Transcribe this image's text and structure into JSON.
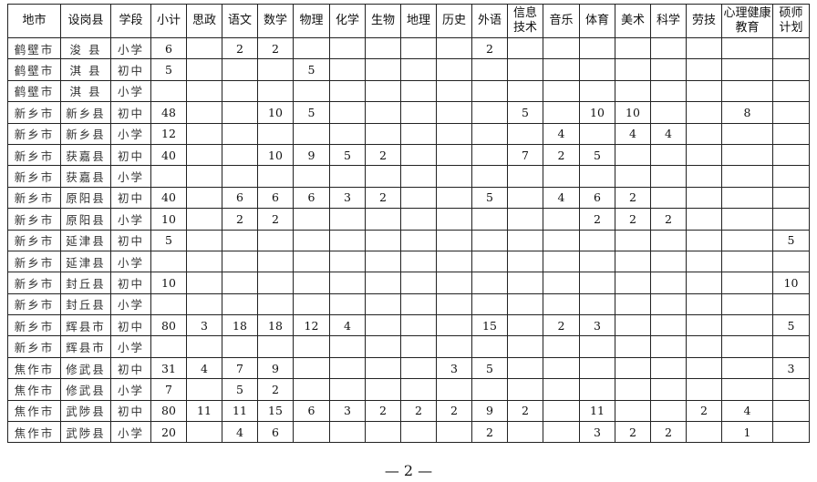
{
  "table": {
    "headers": [
      "地市",
      "设岗县",
      "学段",
      "小计",
      "思政",
      "语文",
      "数学",
      "物理",
      "化学",
      "生物",
      "地理",
      "历史",
      "外语",
      "信息技术",
      "音乐",
      "体育",
      "美术",
      "科学",
      "劳技",
      "心理健康教育",
      "硕师计划"
    ],
    "rows": [
      [
        "鹤壁市",
        "浚 县",
        "小学",
        "6",
        "",
        "2",
        "2",
        "",
        "",
        "",
        "",
        "",
        "2",
        "",
        "",
        "",
        "",
        "",
        "",
        "",
        ""
      ],
      [
        "鹤壁市",
        "淇 县",
        "初中",
        "5",
        "",
        "",
        "",
        "5",
        "",
        "",
        "",
        "",
        "",
        "",
        "",
        "",
        "",
        "",
        "",
        "",
        ""
      ],
      [
        "鹤壁市",
        "淇 县",
        "小学",
        "",
        "",
        "",
        "",
        "",
        "",
        "",
        "",
        "",
        "",
        "",
        "",
        "",
        "",
        "",
        "",
        "",
        ""
      ],
      [
        "新乡市",
        "新乡县",
        "初中",
        "48",
        "",
        "",
        "10",
        "5",
        "",
        "",
        "",
        "",
        "",
        "5",
        "",
        "10",
        "10",
        "",
        "",
        "8",
        ""
      ],
      [
        "新乡市",
        "新乡县",
        "小学",
        "12",
        "",
        "",
        "",
        "",
        "",
        "",
        "",
        "",
        "",
        "",
        "4",
        "",
        "4",
        "4",
        "",
        "",
        ""
      ],
      [
        "新乡市",
        "获嘉县",
        "初中",
        "40",
        "",
        "",
        "10",
        "9",
        "5",
        "2",
        "",
        "",
        "",
        "7",
        "2",
        "5",
        "",
        "",
        "",
        "",
        ""
      ],
      [
        "新乡市",
        "获嘉县",
        "小学",
        "",
        "",
        "",
        "",
        "",
        "",
        "",
        "",
        "",
        "",
        "",
        "",
        "",
        "",
        "",
        "",
        "",
        ""
      ],
      [
        "新乡市",
        "原阳县",
        "初中",
        "40",
        "",
        "6",
        "6",
        "6",
        "3",
        "2",
        "",
        "",
        "5",
        "",
        "4",
        "6",
        "2",
        "",
        "",
        "",
        ""
      ],
      [
        "新乡市",
        "原阳县",
        "小学",
        "10",
        "",
        "2",
        "2",
        "",
        "",
        "",
        "",
        "",
        "",
        "",
        "",
        "2",
        "2",
        "2",
        "",
        "",
        ""
      ],
      [
        "新乡市",
        "延津县",
        "初中",
        "5",
        "",
        "",
        "",
        "",
        "",
        "",
        "",
        "",
        "",
        "",
        "",
        "",
        "",
        "",
        "",
        "",
        "5"
      ],
      [
        "新乡市",
        "延津县",
        "小学",
        "",
        "",
        "",
        "",
        "",
        "",
        "",
        "",
        "",
        "",
        "",
        "",
        "",
        "",
        "",
        "",
        "",
        ""
      ],
      [
        "新乡市",
        "封丘县",
        "初中",
        "10",
        "",
        "",
        "",
        "",
        "",
        "",
        "",
        "",
        "",
        "",
        "",
        "",
        "",
        "",
        "",
        "",
        "10"
      ],
      [
        "新乡市",
        "封丘县",
        "小学",
        "",
        "",
        "",
        "",
        "",
        "",
        "",
        "",
        "",
        "",
        "",
        "",
        "",
        "",
        "",
        "",
        "",
        ""
      ],
      [
        "新乡市",
        "辉县市",
        "初中",
        "80",
        "3",
        "18",
        "18",
        "12",
        "4",
        "",
        "",
        "",
        "15",
        "",
        "2",
        "3",
        "",
        "",
        "",
        "",
        "5"
      ],
      [
        "新乡市",
        "辉县市",
        "小学",
        "",
        "",
        "",
        "",
        "",
        "",
        "",
        "",
        "",
        "",
        "",
        "",
        "",
        "",
        "",
        "",
        "",
        ""
      ],
      [
        "焦作市",
        "修武县",
        "初中",
        "31",
        "4",
        "7",
        "9",
        "",
        "",
        "",
        "",
        "3",
        "5",
        "",
        "",
        "",
        "",
        "",
        "",
        "",
        "3"
      ],
      [
        "焦作市",
        "修武县",
        "小学",
        "7",
        "",
        "5",
        "2",
        "",
        "",
        "",
        "",
        "",
        "",
        "",
        "",
        "",
        "",
        "",
        "",
        "",
        ""
      ],
      [
        "焦作市",
        "武陟县",
        "初中",
        "80",
        "11",
        "11",
        "15",
        "6",
        "3",
        "2",
        "2",
        "2",
        "9",
        "2",
        "",
        "11",
        "",
        "",
        "2",
        "4",
        ""
      ],
      [
        "焦作市",
        "武陟县",
        "小学",
        "20",
        "",
        "4",
        "6",
        "",
        "",
        "",
        "",
        "",
        "2",
        "",
        "",
        "3",
        "2",
        "2",
        "",
        "1",
        ""
      ]
    ]
  },
  "footer": {
    "page_number": "— 2 —"
  }
}
